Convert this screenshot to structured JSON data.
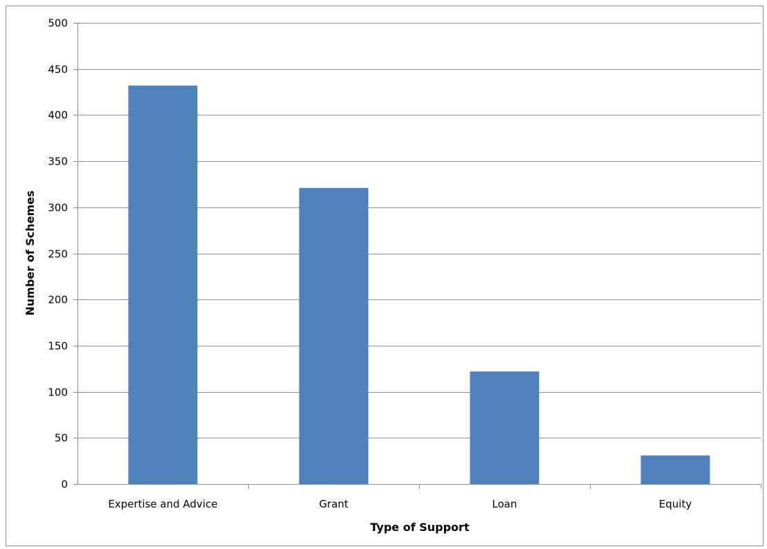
{
  "chart_data": {
    "type": "bar",
    "title": "",
    "xlabel": "Type of Support",
    "ylabel": "Number of Schemes",
    "categories": [
      "Expertise and Advice",
      "Grant",
      "Loan",
      "Equity"
    ],
    "values": [
      432,
      321,
      122,
      31
    ],
    "ylim": [
      0,
      500
    ],
    "yticks": [
      0,
      50,
      100,
      150,
      200,
      250,
      300,
      350,
      400,
      450,
      500
    ],
    "grid": true,
    "legend": "none",
    "bar_color": "#4f81bd",
    "grid_color": "#8c8c8c"
  }
}
